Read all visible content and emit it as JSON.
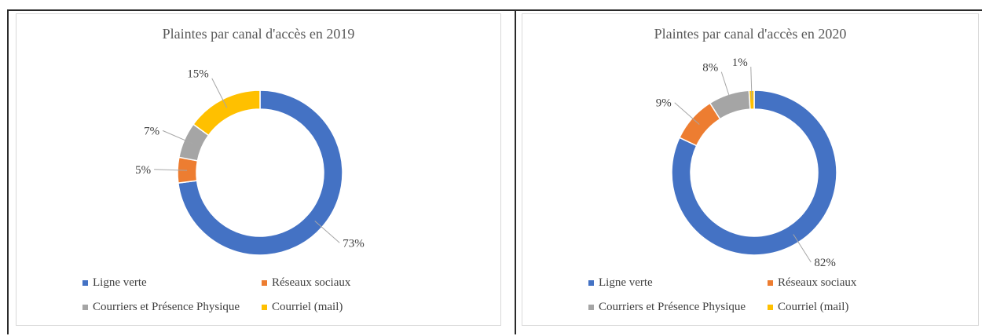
{
  "colors": {
    "ligne_verte": "#4472c4",
    "reseaux_sociaux": "#ed7d31",
    "courriers": "#a5a5a5",
    "courriel": "#ffc000"
  },
  "legend_labels": [
    "Ligne verte",
    "Réseaux sociaux",
    "Courriers et Présence Physique",
    "Courriel (mail)"
  ],
  "chart_data": [
    {
      "type": "pie",
      "subtype": "doughnut",
      "title": "Plaintes par canal d'accès en 2019",
      "categories": [
        "Ligne verte",
        "Réseaux sociaux",
        "Courriers et Présence Physique",
        "Courriel (mail)"
      ],
      "values": [
        73,
        5,
        7,
        15
      ],
      "labels": [
        "73%",
        "5%",
        "7%",
        "15%"
      ],
      "legend_position": "bottom"
    },
    {
      "type": "pie",
      "subtype": "doughnut",
      "title": "Plaintes par canal d'accès en 2020",
      "categories": [
        "Ligne verte",
        "Réseaux sociaux",
        "Courriers et Présence Physique",
        "Courriel (mail)"
      ],
      "values": [
        82,
        9,
        8,
        1
      ],
      "labels": [
        "82%",
        "9%",
        "8%",
        "1%"
      ],
      "legend_position": "bottom"
    }
  ]
}
